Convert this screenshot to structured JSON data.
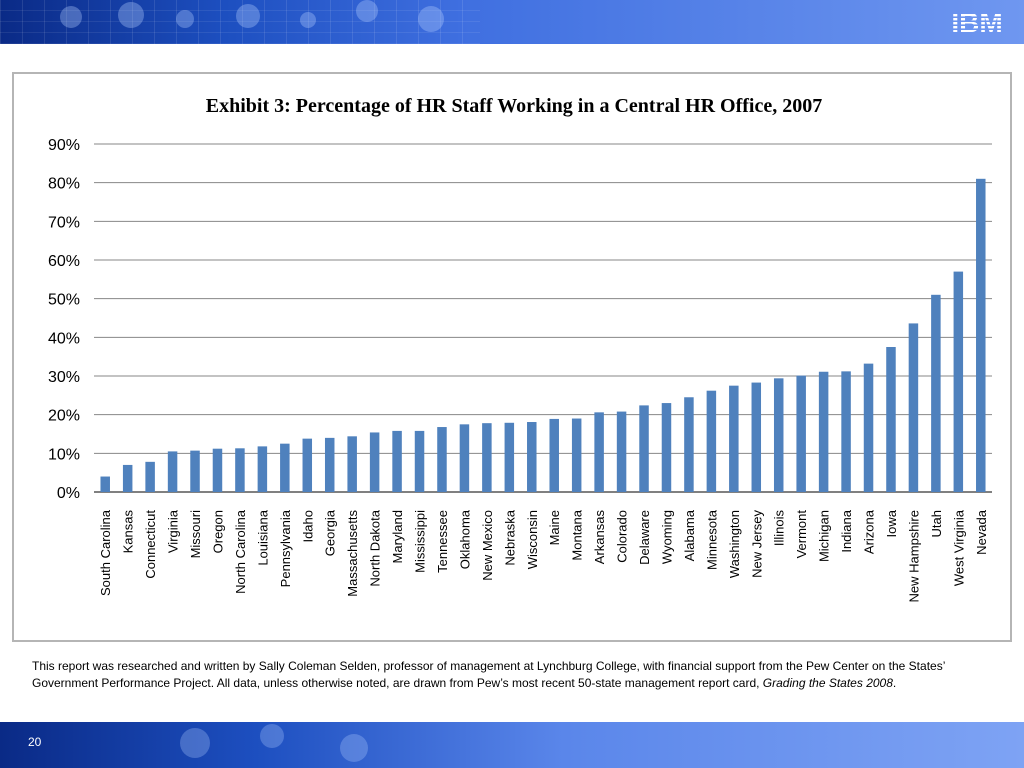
{
  "page_number": "20",
  "brand": "IBM",
  "colors": {
    "bar": "#4f81bd",
    "banner": "#1d4fc0",
    "grid": "#878787"
  },
  "caption": {
    "text": "This report was researched and written by Sally Coleman Selden, professor of management at Lynchburg College, with financial support from the Pew Center on the States’ Government Performance Project. All data, unless otherwise noted, are drawn from Pew’s most recent 50-state management report card, ",
    "italic": "Grading the States 2008",
    "end": "."
  },
  "chart_data": {
    "type": "bar",
    "title": "Exhibit 3: Percentage of HR Staff Working in a Central HR Office, 2007",
    "xlabel": "",
    "ylabel": "",
    "ylim": [
      0,
      90
    ],
    "yticks": [
      "0%",
      "10%",
      "20%",
      "30%",
      "40%",
      "50%",
      "60%",
      "70%",
      "80%",
      "90%"
    ],
    "grid": true,
    "categories": [
      "South Carolina",
      "Kansas",
      "Connecticut",
      "Virginia",
      "Missouri",
      "Oregon",
      "North Carolina",
      "Louisiana",
      "Pennsylvania",
      "Idaho",
      "Georgia",
      "Massachusetts",
      "North Dakota",
      "Maryland",
      "Mississippi",
      "Tennessee",
      "Oklahoma",
      "New Mexico",
      "Nebraska",
      "Wisconsin",
      "Maine",
      "Montana",
      "Arkansas",
      "Colorado",
      "Delaware",
      "Wyoming",
      "Alabama",
      "Minnesota",
      "Washington",
      "New Jersey",
      "Illinois",
      "Vermont",
      "Michigan",
      "Indiana",
      "Arizona",
      "Iowa",
      "New Hampshire",
      "Utah",
      "West Virginia",
      "Nevada"
    ],
    "values": [
      4,
      7,
      7.8,
      10.5,
      10.7,
      11.2,
      11.3,
      11.8,
      12.5,
      13.8,
      14,
      14.4,
      15.4,
      15.8,
      15.8,
      16.8,
      17.5,
      17.8,
      17.9,
      18.1,
      18.9,
      19,
      20.6,
      20.8,
      22.4,
      23,
      24.5,
      26.2,
      27.5,
      28.3,
      29.4,
      30.1,
      31.1,
      31.2,
      33.2,
      37.5,
      43.6,
      51,
      57,
      81
    ]
  }
}
